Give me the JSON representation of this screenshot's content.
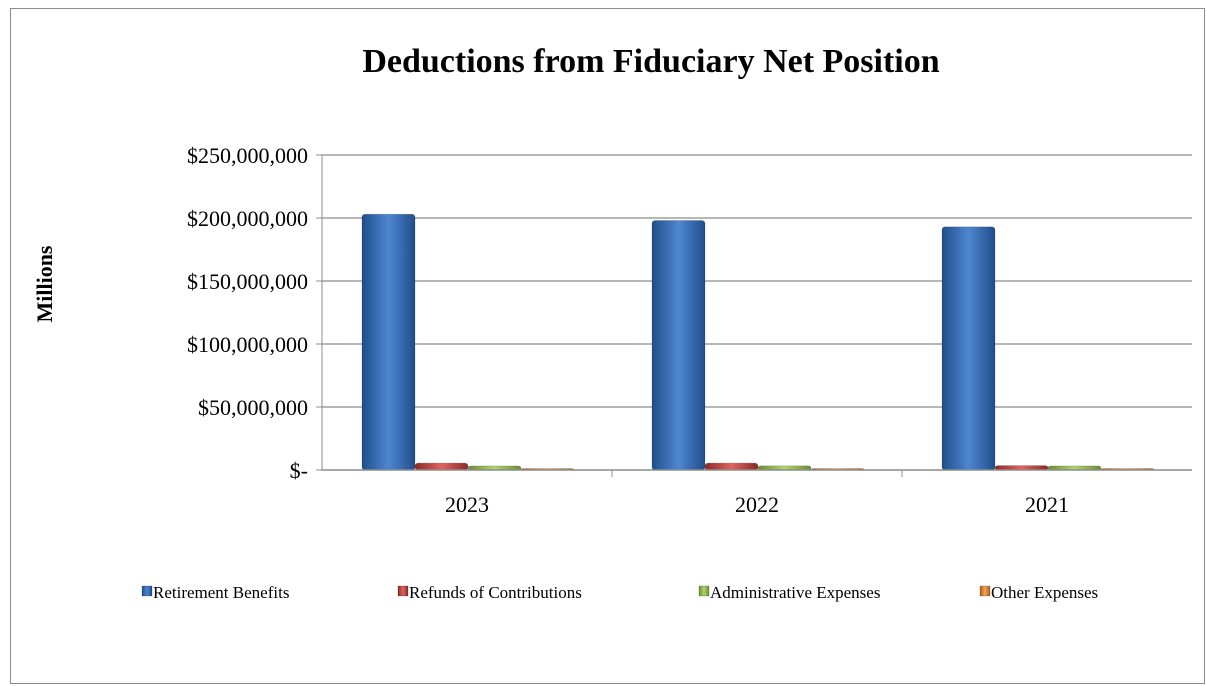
{
  "chart_data": {
    "type": "bar",
    "title": "Deductions from Fiduciary Net Position",
    "ylabel": "Millions",
    "xlabel": "",
    "categories": [
      "2023",
      "2022",
      "2021"
    ],
    "ylim": [
      0,
      250000000
    ],
    "yticks": [
      0,
      50000000,
      100000000,
      150000000,
      200000000,
      250000000
    ],
    "ytick_labels": [
      "$-",
      "$50,000,000",
      "$100,000,000",
      "$150,000,000",
      "$200,000,000",
      "$250,000,000"
    ],
    "grid": true,
    "legend_position": "bottom",
    "series": [
      {
        "name": "Retirement Benefits",
        "color": "#3366b3",
        "values": [
          203000000,
          198000000,
          193000000
        ]
      },
      {
        "name": "Refunds of Contributions",
        "color": "#c0504d",
        "values": [
          5500000,
          5500000,
          3500000
        ]
      },
      {
        "name": "Administrative Expenses",
        "color": "#9bbb59",
        "values": [
          3200000,
          3300000,
          3200000
        ]
      },
      {
        "name": "Other Expenses",
        "color": "#e0883a",
        "values": [
          800000,
          800000,
          800000
        ]
      }
    ]
  }
}
